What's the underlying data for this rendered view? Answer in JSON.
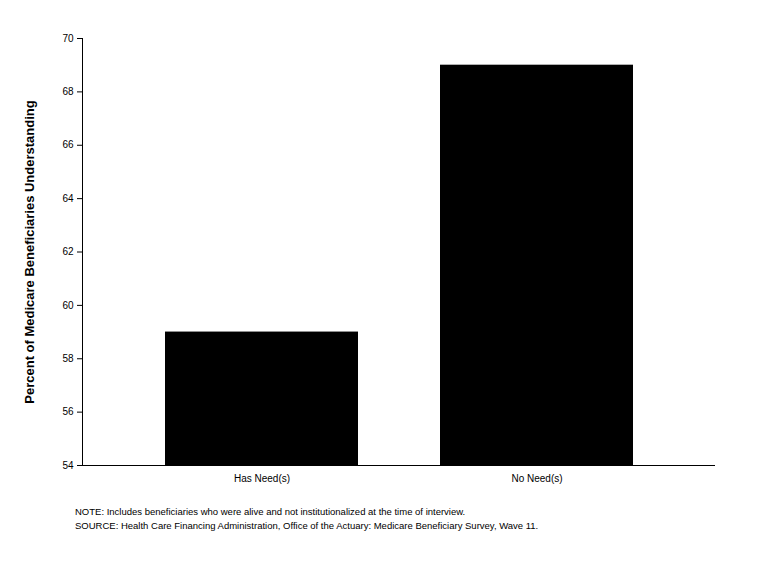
{
  "chart_data": {
    "type": "bar",
    "ylabel": "Percent of Medicare Beneficiaries Understanding",
    "categories": [
      "Has Need(s)",
      "No Need(s)"
    ],
    "values": [
      59,
      69
    ],
    "color": "#000000",
    "ylim": [
      54,
      70
    ],
    "yticks": [
      54,
      56,
      58,
      60,
      62,
      64,
      66,
      68,
      70
    ],
    "grid": false,
    "annotations": [
      "NOTE: Includes beneficiaries who were alive and not institutionalized at the time of interview.",
      "SOURCE: Health Care Financing Administration, Office of the Actuary: Medicare Beneficiary Survey, Wave 11."
    ]
  }
}
